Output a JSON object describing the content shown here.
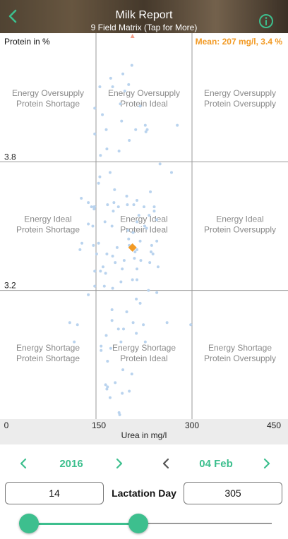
{
  "header": {
    "title": "Milk Report",
    "subtitle": "9 Field Matrix (Tap for More)",
    "back_icon": "chevron-left-icon",
    "info_icon": "info-circle-icon"
  },
  "plot": {
    "y_axis_title": "Protein in %",
    "mean_label": "Mean: 207 mg/l, 3.4 %",
    "mean_color": "#f29a24",
    "x_axis_label": "Urea in mg/l",
    "x_ticks": [
      "0",
      "150",
      "300",
      "450"
    ],
    "y_ticks": [
      "3.8",
      "3.2"
    ],
    "fields": [
      {
        "row": 0,
        "col": 0,
        "line1": "Energy Oversupply",
        "line2": "Protein Shortage"
      },
      {
        "row": 0,
        "col": 1,
        "line1": "Energy Oversupply",
        "line2": "Protein Ideal"
      },
      {
        "row": 0,
        "col": 2,
        "line1": "Energy Oversupply",
        "line2": "Protein Oversupply"
      },
      {
        "row": 1,
        "col": 0,
        "line1": "Energy Ideal",
        "line2": "Protein Shortage"
      },
      {
        "row": 1,
        "col": 1,
        "line1": "Energy Ideal",
        "line2": "Protein Ideal"
      },
      {
        "row": 1,
        "col": 2,
        "line1": "Energy Ideal",
        "line2": "Protein Oversupply"
      },
      {
        "row": 2,
        "col": 0,
        "line1": "Energy Shortage",
        "line2": "Protein Shortage"
      },
      {
        "row": 2,
        "col": 1,
        "line1": "Energy Shortage",
        "line2": "Protein Ideal"
      },
      {
        "row": 2,
        "col": 2,
        "line1": "Energy Shortage",
        "line2": "Protein Oversupply"
      }
    ]
  },
  "chart_data": {
    "type": "scatter",
    "x_range": [
      0,
      450
    ],
    "y_range": [
      2.6,
      4.4
    ],
    "x_thresholds": [
      150,
      300
    ],
    "y_thresholds": [
      3.2,
      3.8
    ],
    "point_color": "#b9d3ee",
    "mean_point": {
      "x": 207,
      "y": 3.4
    },
    "points": [
      [
        206,
        4.25
      ],
      [
        192,
        4.21
      ],
      [
        173,
        4.19
      ],
      [
        201,
        4.16
      ],
      [
        156,
        4.15
      ],
      [
        176,
        4.15
      ],
      [
        195,
        4.13
      ],
      [
        188,
        4.07
      ],
      [
        219,
        4.06
      ],
      [
        148,
        4.05
      ],
      [
        160,
        4.02
      ],
      [
        190,
        3.99
      ],
      [
        227,
        3.97
      ],
      [
        277,
        3.97
      ],
      [
        212,
        3.95
      ],
      [
        166,
        3.95
      ],
      [
        230,
        3.95
      ],
      [
        228,
        3.94
      ],
      [
        148,
        3.93
      ],
      [
        202,
        3.9
      ],
      [
        167,
        3.86
      ],
      [
        186,
        3.85
      ],
      [
        157,
        3.83
      ],
      [
        250,
        3.79
      ],
      [
        172,
        3.75
      ],
      [
        268,
        3.75
      ],
      [
        156,
        3.73
      ],
      [
        154,
        3.7
      ],
      [
        179,
        3.67
      ],
      [
        235,
        3.66
      ],
      [
        198,
        3.64
      ],
      [
        127,
        3.63
      ],
      [
        214,
        3.62
      ],
      [
        138,
        3.61
      ],
      [
        178,
        3.61
      ],
      [
        199,
        3.6
      ],
      [
        209,
        3.6
      ],
      [
        168,
        3.6
      ],
      [
        148,
        3.59
      ],
      [
        147,
        3.59
      ],
      [
        143,
        3.59
      ],
      [
        185,
        3.59
      ],
      [
        225,
        3.59
      ],
      [
        241,
        3.59
      ],
      [
        147,
        3.58
      ],
      [
        177,
        3.57
      ],
      [
        241,
        3.57
      ],
      [
        217,
        3.55
      ],
      [
        233,
        3.55
      ],
      [
        245,
        3.53
      ],
      [
        164,
        3.52
      ],
      [
        214,
        3.52
      ],
      [
        138,
        3.51
      ],
      [
        226,
        3.5
      ],
      [
        145,
        3.5
      ],
      [
        175,
        3.5
      ],
      [
        229,
        3.49
      ],
      [
        200,
        3.48
      ],
      [
        208,
        3.47
      ],
      [
        201,
        3.44
      ],
      [
        219,
        3.43
      ],
      [
        245,
        3.43
      ],
      [
        128,
        3.42
      ],
      [
        154,
        3.42
      ],
      [
        146,
        3.41
      ],
      [
        202,
        3.41
      ],
      [
        237,
        3.41
      ],
      [
        183,
        3.4
      ],
      [
        214,
        3.39
      ],
      [
        125,
        3.39
      ],
      [
        211,
        3.38
      ],
      [
        236,
        3.38
      ],
      [
        167,
        3.37
      ],
      [
        151,
        3.37
      ],
      [
        239,
        3.37
      ],
      [
        176,
        3.36
      ],
      [
        210,
        3.35
      ],
      [
        194,
        3.34
      ],
      [
        220,
        3.34
      ],
      [
        180,
        3.33
      ],
      [
        234,
        3.33
      ],
      [
        161,
        3.31
      ],
      [
        247,
        3.31
      ],
      [
        191,
        3.3
      ],
      [
        214,
        3.3
      ],
      [
        148,
        3.29
      ],
      [
        157,
        3.29
      ],
      [
        165,
        3.28
      ],
      [
        214,
        3.25
      ],
      [
        207,
        3.25
      ],
      [
        189,
        3.24
      ],
      [
        148,
        3.22
      ],
      [
        163,
        3.22
      ],
      [
        176,
        3.21
      ],
      [
        232,
        3.2
      ],
      [
        245,
        3.19
      ],
      [
        138,
        3.18
      ],
      [
        213,
        3.16
      ],
      [
        219,
        3.14
      ],
      [
        175,
        3.11
      ],
      [
        198,
        3.1
      ],
      [
        175,
        3.06
      ],
      [
        261,
        3.05
      ],
      [
        208,
        3.05
      ],
      [
        109,
        3.05
      ],
      [
        224,
        3.04
      ],
      [
        298,
        3.04
      ],
      [
        121,
        3.04
      ],
      [
        193,
        3.02
      ],
      [
        185,
        3.02
      ],
      [
        213,
        3.0
      ],
      [
        189,
        2.96
      ],
      [
        227,
        2.96
      ],
      [
        173,
        2.93
      ],
      [
        116,
        2.96
      ],
      [
        166,
        2.99
      ],
      [
        158,
        2.92
      ],
      [
        158,
        2.94
      ],
      [
        168,
        2.87
      ],
      [
        192,
        2.83
      ],
      [
        206,
        2.81
      ],
      [
        180,
        2.77
      ],
      [
        202,
        2.73
      ],
      [
        167,
        2.74
      ],
      [
        165,
        2.76
      ],
      [
        168,
        2.75
      ],
      [
        191,
        2.72
      ],
      [
        172,
        2.7
      ],
      [
        186,
        2.63
      ],
      [
        191,
        2.58
      ],
      [
        187,
        2.62
      ],
      [
        172,
        2.54
      ]
    ]
  },
  "date_nav": {
    "year": "2016",
    "date": "04 Feb",
    "accent_color": "#3dbf8e"
  },
  "lactation": {
    "min_value": "14",
    "label": "Lactation Day",
    "max_value": "305"
  },
  "slider": {
    "min": 0,
    "max": 365,
    "low_value": 14,
    "high_value": 172
  }
}
